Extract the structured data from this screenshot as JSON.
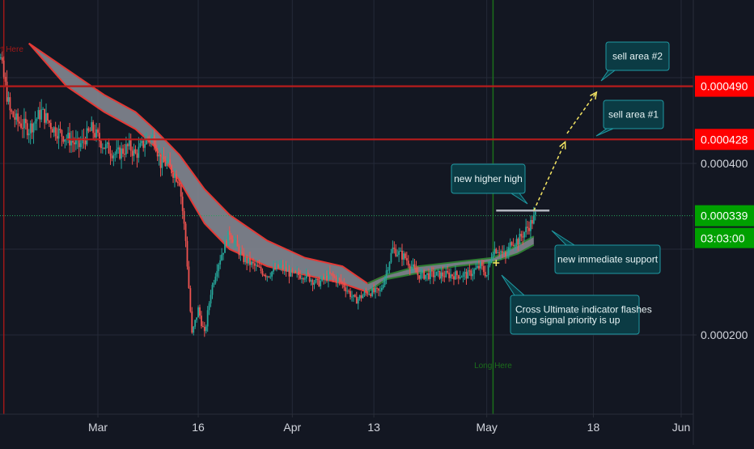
{
  "colors": {
    "background": "#131722",
    "grid": "#242a38",
    "axis_line": "#2a2e39",
    "axis_text": "#d1d4dc",
    "candle_up": "#26a69a",
    "candle_down": "#ef5350",
    "resistance": "#b71c1c",
    "price_badge_red": "#ff0000",
    "price_badge_green": "#00a000",
    "current_price_line": "#26a65b",
    "cloud_fill": "#8a8d96",
    "cloud_edge": "#e53935",
    "cloud_edge_bull": "#2e7d32",
    "callout_bg": "#0b3b44",
    "callout_border": "#1f9aa3",
    "arrow_yellow": "#f5e663",
    "support_line": "#b2b5be",
    "short_line": "#a01818",
    "long_line": "#1b6e1b"
  },
  "chart_data": {
    "type": "candlestick",
    "title": "",
    "xlabel": "",
    "ylabel": "",
    "ylim": [
      0.00013,
      0.00054
    ],
    "x_ticks": [
      "Mar",
      "16",
      "Apr",
      "13",
      "May",
      "18",
      "Jun"
    ],
    "x_tick_days": [
      29,
      45,
      60,
      73,
      91,
      108,
      122
    ],
    "x_range_days": [
      11,
      124
    ],
    "y_ticks": [
      "0.000400",
      "0.000200"
    ],
    "y_tick_values": [
      0.0004,
      0.0002
    ],
    "grid": true,
    "resistance_levels": [
      {
        "value": 0.00049,
        "label": "0.000490"
      },
      {
        "value": 0.000428,
        "label": "0.000428"
      }
    ],
    "current_price": {
      "value": 0.000339,
      "label": "0.000339",
      "countdown": "03:03:00"
    },
    "markers": [
      {
        "label": "Short Here",
        "day": 14
      },
      {
        "label": "Long Here",
        "day": 92
      }
    ],
    "price_path": [
      [
        11,
        0.00055
      ],
      [
        13,
        0.00054
      ],
      [
        14,
        0.0005
      ],
      [
        15,
        0.00046
      ],
      [
        16,
        0.00045
      ],
      [
        18,
        0.00044
      ],
      [
        20,
        0.00046
      ],
      [
        22,
        0.00044
      ],
      [
        24,
        0.00043
      ],
      [
        26,
        0.00042
      ],
      [
        28,
        0.00044
      ],
      [
        30,
        0.00042
      ],
      [
        32,
        0.00041
      ],
      [
        34,
        0.00042
      ],
      [
        35,
        0.00041
      ],
      [
        37,
        0.00043
      ],
      [
        38,
        0.00043
      ],
      [
        39,
        0.0004
      ],
      [
        40,
        0.0004
      ],
      [
        41,
        0.00039
      ],
      [
        42,
        0.00038
      ],
      [
        43,
        0.00031
      ],
      [
        44,
        0.0002
      ],
      [
        45,
        0.00023
      ],
      [
        46,
        0.0002
      ],
      [
        47,
        0.00025
      ],
      [
        48,
        0.00028
      ],
      [
        49,
        0.0003
      ],
      [
        50,
        0.00032
      ],
      [
        52,
        0.00029
      ],
      [
        54,
        0.00028
      ],
      [
        56,
        0.00027
      ],
      [
        58,
        0.00028
      ],
      [
        60,
        0.00027
      ],
      [
        62,
        0.00027
      ],
      [
        64,
        0.00026
      ],
      [
        66,
        0.00027
      ],
      [
        68,
        0.00026
      ],
      [
        70,
        0.00024
      ],
      [
        72,
        0.00025
      ],
      [
        74,
        0.00025
      ],
      [
        76,
        0.0003
      ],
      [
        78,
        0.00029
      ],
      [
        80,
        0.00027
      ],
      [
        82,
        0.00027
      ],
      [
        84,
        0.00027
      ],
      [
        86,
        0.00027
      ],
      [
        88,
        0.00027
      ],
      [
        90,
        0.00028
      ],
      [
        91,
        0.00027
      ],
      [
        92,
        0.0003
      ],
      [
        93,
        0.0003
      ],
      [
        94,
        0.00029
      ],
      [
        95,
        0.00031
      ],
      [
        96,
        0.00031
      ],
      [
        97,
        0.00032
      ],
      [
        98,
        0.00033
      ],
      [
        98.8,
        0.00034
      ]
    ],
    "cloud_top": [
      [
        18,
        0.00054
      ],
      [
        24,
        0.00051
      ],
      [
        30,
        0.00048
      ],
      [
        35,
        0.00046
      ],
      [
        38,
        0.00044
      ],
      [
        42,
        0.00041
      ],
      [
        46,
        0.00037
      ],
      [
        50,
        0.00034
      ],
      [
        56,
        0.00031
      ],
      [
        62,
        0.00029
      ],
      [
        68,
        0.00028
      ],
      [
        72,
        0.00026
      ],
      [
        75,
        0.00027
      ],
      [
        80,
        0.00028
      ],
      [
        86,
        0.000285
      ],
      [
        92,
        0.00029
      ],
      [
        96,
        0.000305
      ],
      [
        98.5,
        0.000315
      ]
    ],
    "cloud_bottom": [
      [
        18,
        0.00054
      ],
      [
        24,
        0.00049
      ],
      [
        30,
        0.00046
      ],
      [
        35,
        0.00044
      ],
      [
        38,
        0.00042
      ],
      [
        42,
        0.00038
      ],
      [
        46,
        0.00033
      ],
      [
        50,
        0.0003
      ],
      [
        56,
        0.00028
      ],
      [
        62,
        0.00027
      ],
      [
        68,
        0.00026
      ],
      [
        72,
        0.00025
      ],
      [
        75,
        0.000265
      ],
      [
        80,
        0.000272
      ],
      [
        86,
        0.00028
      ],
      [
        92,
        0.000285
      ],
      [
        96,
        0.000295
      ],
      [
        98.5,
        0.000305
      ]
    ],
    "support_line": {
      "from_day": 92.5,
      "to_day": 101,
      "value": 0.000345
    },
    "target_arrows": [
      {
        "from": [
          98.5,
          0.000345
        ],
        "to": [
          103.5,
          0.000425
        ]
      },
      {
        "from": [
          103.8,
          0.000435
        ],
        "to": [
          108.5,
          0.000483
        ]
      }
    ],
    "annotations": [
      {
        "id": "sell-area-2",
        "text": [
          "sell area #2"
        ]
      },
      {
        "id": "sell-area-1",
        "text": [
          "sell area #1"
        ]
      },
      {
        "id": "new-higher-high",
        "text": [
          "new higher high"
        ]
      },
      {
        "id": "new-immediate-support",
        "text": [
          "new immediate support"
        ]
      },
      {
        "id": "cross-ultimate",
        "text": [
          "Cross Ultimate indicator flashes",
          "Long signal priority is up"
        ]
      }
    ]
  }
}
